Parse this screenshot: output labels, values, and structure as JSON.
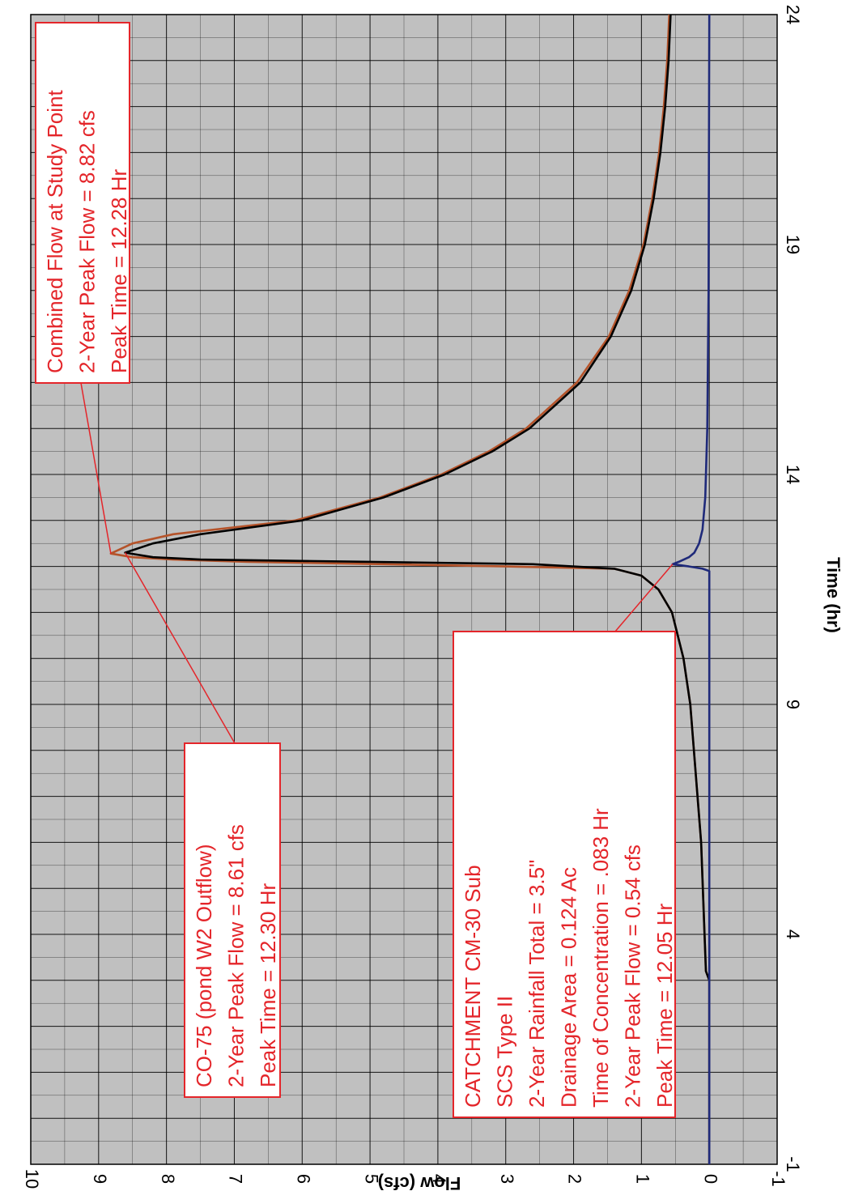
{
  "chart_data": {
    "type": "line",
    "orientation": "rotated 90 degrees (time runs bottom-to-top, flow increases right-to-left)",
    "xlabel": "Time (hr)",
    "ylabel": "Flow (cfs)",
    "xlim": [
      -1,
      24
    ],
    "ylim": [
      -1,
      10
    ],
    "x_ticks": [
      "-1",
      "4",
      "9",
      "14",
      "19",
      "24"
    ],
    "x_tick_values": [
      -1,
      4,
      9,
      14,
      19,
      24
    ],
    "y_ticks": [
      "-1",
      "0",
      "1",
      "2",
      "3",
      "4",
      "5",
      "6",
      "7",
      "8",
      "9",
      "10"
    ],
    "y_tick_values": [
      -1,
      0,
      1,
      2,
      3,
      4,
      5,
      6,
      7,
      8,
      9,
      10
    ],
    "grid": true,
    "series": [
      {
        "color": "#000000",
        "x": [
          -1,
          3,
          3.2,
          6,
          9,
          10,
          11,
          11.5,
          11.8,
          11.95,
          12.05,
          12.1,
          12.15,
          12.2,
          12.3,
          12.5,
          12.7,
          13,
          13.5,
          14,
          14.5,
          15,
          16,
          17,
          18,
          19,
          20,
          21,
          22,
          23,
          24
        ],
        "values": [
          0.0,
          0.0,
          0.05,
          0.12,
          0.28,
          0.38,
          0.55,
          0.75,
          1.0,
          1.4,
          2.6,
          5.0,
          7.5,
          8.2,
          8.61,
          8.2,
          7.5,
          6.0,
          4.8,
          3.9,
          3.2,
          2.65,
          1.9,
          1.45,
          1.15,
          0.95,
          0.82,
          0.72,
          0.65,
          0.6,
          0.57
        ]
      },
      {
        "color": "#b5532a",
        "x": [
          -1,
          3,
          3.2,
          6,
          9,
          10,
          11,
          11.5,
          11.8,
          11.95,
          12.0,
          12.05,
          12.1,
          12.15,
          12.2,
          12.28,
          12.5,
          12.7,
          13,
          13.5,
          14,
          14.5,
          15,
          16,
          17,
          18,
          19,
          20,
          21,
          22,
          23,
          24
        ],
        "values": [
          0.0,
          0.0,
          0.05,
          0.12,
          0.28,
          0.38,
          0.55,
          0.75,
          1.0,
          1.4,
          3.0,
          4.8,
          6.8,
          7.9,
          8.5,
          8.82,
          8.5,
          7.9,
          6.1,
          4.85,
          3.95,
          3.25,
          2.7,
          1.95,
          1.48,
          1.18,
          0.97,
          0.84,
          0.74,
          0.67,
          0.62,
          0.59
        ]
      },
      {
        "color": "#1f2a7a",
        "x": [
          -1,
          11.9,
          11.95,
          12.0,
          12.05,
          12.1,
          12.2,
          12.3,
          12.5,
          12.8,
          13.5,
          15,
          18,
          24
        ],
        "values": [
          0.0,
          0.0,
          0.1,
          0.3,
          0.54,
          0.45,
          0.3,
          0.22,
          0.15,
          0.1,
          0.06,
          0.03,
          0.01,
          0.0
        ]
      }
    ],
    "annotations": [
      {
        "lines": [
          "Combined Flow at Study Point",
          "2-Year Peak Flow = 8.82 cfs",
          "Peak Time = 12.28 Hr"
        ],
        "point": {
          "x": 12.28,
          "y": 8.82
        }
      },
      {
        "lines": [
          "CO-75 (pond W2 Outflow)",
          "2-Year Peak Flow = 8.61 cfs",
          "Peak Time = 12.30 Hr"
        ],
        "point": {
          "x": 12.3,
          "y": 8.61
        }
      },
      {
        "lines": [
          "CATCHMENT CM-30 Sub",
          "SCS Type II",
          "2-Year Rainfall Total = 3.5\"",
          "Drainage Area = 0.124 Ac",
          "Time of Concentration = .083 Hr",
          "2-Year Peak Flow = 0.54 cfs",
          "Peak Time = 12.05 Hr"
        ],
        "point": {
          "x": 12.05,
          "y": 0.54
        }
      }
    ],
    "colors": {
      "grid": "#000000",
      "plot_bg": "#c0c0c0",
      "annotation": "#e4252a"
    }
  }
}
